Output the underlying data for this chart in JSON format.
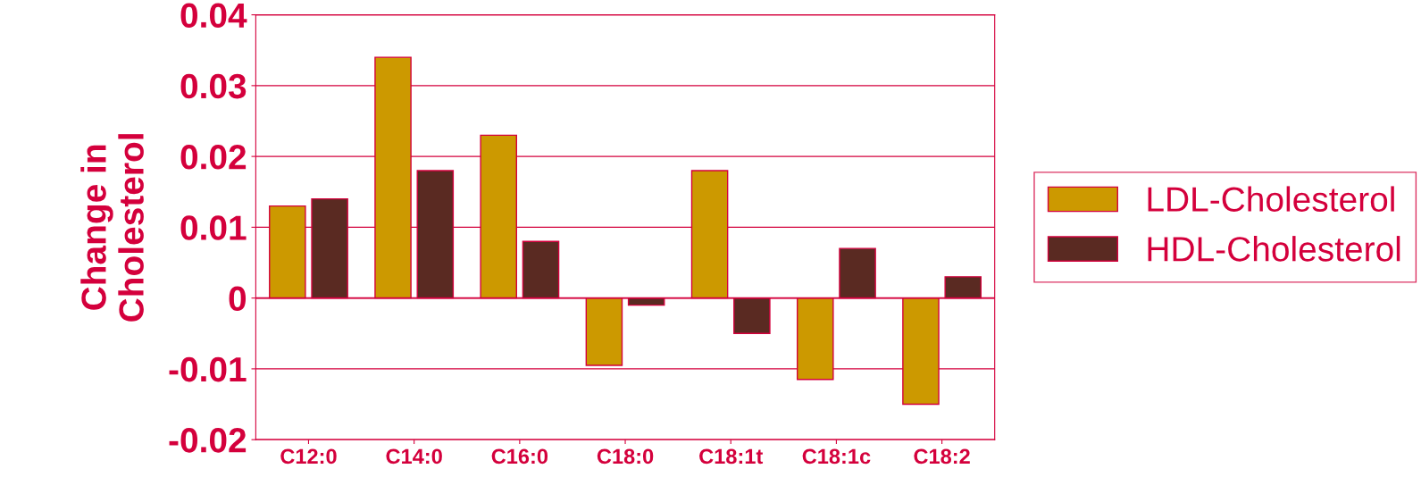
{
  "chart_data": {
    "type": "bar",
    "ylabel": "Change in\nCholesterol",
    "categories": [
      "C12:0",
      "C14:0",
      "C16:0",
      "C18:0",
      "C18:1t",
      "C18:1c",
      "C18:2"
    ],
    "series": [
      {
        "name": "LDL-Cholesterol",
        "color": "#cc9900",
        "values": [
          0.013,
          0.034,
          0.023,
          -0.0095,
          0.018,
          -0.0115,
          -0.015
        ]
      },
      {
        "name": "HDL-Cholesterol",
        "color": "#5a2a22",
        "values": [
          0.014,
          0.018,
          0.008,
          -0.001,
          -0.005,
          0.007,
          0.003
        ]
      }
    ],
    "ylim": [
      -0.02,
      0.04
    ],
    "yticks": [
      {
        "value": -0.02,
        "label": "-0.02"
      },
      {
        "value": -0.01,
        "label": "-0.01"
      },
      0,
      0.01,
      0.02,
      0.03,
      0.04
    ],
    "grid": "y",
    "legend": "right"
  }
}
